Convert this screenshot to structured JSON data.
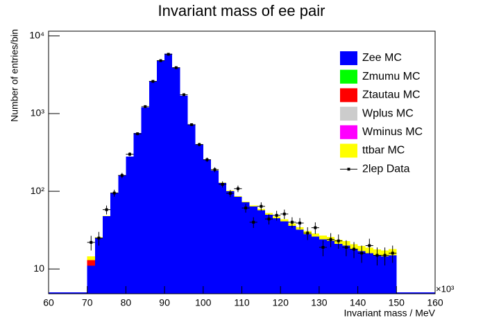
{
  "chart_data": {
    "type": "stacked-histogram",
    "title": "Invariant mass of ee pair",
    "x_label": "Invariant mass / MeV",
    "x_exponent": "×10³",
    "y_label": "Number of entries/bin",
    "log_y": true,
    "legend": "top-right",
    "xlim": [
      60,
      160
    ],
    "xticks": [
      60,
      70,
      80,
      90,
      100,
      110,
      120,
      130,
      140,
      150,
      160
    ],
    "ylim": [
      4.8,
      11500
    ],
    "yticks": [
      {
        "value": 10,
        "label": "10"
      },
      {
        "value": 100,
        "label": "10²"
      },
      {
        "value": 1000,
        "label": "10³"
      },
      {
        "value": 10000,
        "label": "10⁴"
      }
    ],
    "bins": [
      70,
      72,
      74,
      76,
      78,
      80,
      82,
      84,
      86,
      88,
      90,
      92,
      94,
      96,
      98,
      100,
      102,
      104,
      106,
      108,
      110,
      112,
      114,
      116,
      118,
      120,
      122,
      124,
      126,
      128,
      130,
      132,
      134,
      136,
      138,
      140,
      142,
      144,
      146,
      148,
      150
    ],
    "series": [
      {
        "name": "Zee MC",
        "color": "#0000ff",
        "values": [
          11,
          25,
          48,
          95,
          160,
          280,
          560,
          1200,
          2600,
          4800,
          5900,
          3900,
          1700,
          720,
          400,
          255,
          185,
          128,
          100,
          85,
          72,
          64,
          57,
          50,
          45,
          41,
          36,
          32,
          28,
          26,
          24,
          23,
          21,
          20,
          18,
          17,
          16,
          15,
          14.5,
          15
        ]
      },
      {
        "name": "Zmumu MC",
        "color": "#00ff00",
        "values": [
          0,
          0,
          0,
          0,
          0,
          0,
          0,
          0,
          0,
          0,
          0,
          0,
          0,
          0,
          0,
          0,
          0,
          0,
          0,
          0,
          0,
          0,
          0,
          0,
          0,
          0,
          0,
          0,
          0,
          0,
          0,
          0,
          0,
          0,
          0,
          0,
          0,
          0,
          0,
          0
        ]
      },
      {
        "name": "Ztautau MC",
        "color": "#ff0000",
        "values": [
          2,
          0,
          0,
          0,
          0,
          0,
          0,
          0,
          0,
          0,
          0,
          0,
          0,
          0,
          0,
          0,
          0,
          0,
          0,
          0,
          0,
          0,
          0,
          0,
          0,
          0,
          0,
          0,
          0,
          0,
          0,
          0,
          0,
          0,
          0,
          0,
          0,
          0,
          0,
          0
        ]
      },
      {
        "name": "Wplus MC",
        "color": "#cccccc",
        "values": [
          0,
          0,
          0,
          0,
          0,
          0,
          0,
          0,
          0,
          0,
          0,
          0,
          0,
          0,
          0,
          0,
          0,
          0,
          0,
          0,
          0,
          0,
          0,
          0,
          0,
          0,
          0,
          0,
          0,
          0,
          0,
          0,
          0,
          0,
          0,
          0,
          0,
          0,
          0,
          0
        ]
      },
      {
        "name": "Wminus MC",
        "color": "#ff00ff",
        "values": [
          0,
          0,
          0,
          0,
          0,
          0,
          0,
          0,
          0,
          0,
          0,
          0,
          0,
          0,
          0,
          0,
          0,
          0,
          0,
          0,
          0,
          0,
          0,
          0,
          0,
          0,
          0,
          0,
          0,
          0,
          0,
          0,
          0,
          0,
          0,
          0,
          0,
          0,
          0,
          0
        ]
      },
      {
        "name": "ttbar MC",
        "color": "#ffff00",
        "values": [
          1.5,
          0.5,
          0.5,
          0.6,
          0.7,
          0.8,
          1,
          1,
          1.2,
          1.3,
          1.4,
          1.5,
          1.5,
          1.5,
          1.5,
          1.6,
          1.6,
          1.7,
          1.8,
          2,
          2,
          2,
          2.2,
          2.5,
          2.5,
          2.5,
          2.6,
          2.6,
          2.7,
          2.7,
          2.8,
          2.8,
          2.8,
          2.8,
          2.8,
          2.8,
          2.8,
          2.8,
          2.8,
          3
        ]
      },
      {
        "name": "2lep Data",
        "color": "#000000",
        "style": "points",
        "values": [
          22,
          25,
          58,
          95,
          160,
          300,
          550,
          1230,
          2600,
          4800,
          5800,
          3900,
          1750,
          720,
          400,
          255,
          190,
          123,
          94,
          108,
          61,
          40,
          64,
          44,
          49,
          51,
          40,
          39,
          29,
          34,
          19,
          24,
          23,
          19,
          18,
          16,
          20,
          15,
          15,
          16
        ],
        "errors": [
          4.7,
          5,
          7.6,
          9.7,
          12.6,
          17.3,
          23.5,
          35,
          51,
          69,
          76,
          62,
          42,
          27,
          20,
          16,
          13.8,
          11.1,
          9.7,
          10.4,
          7.8,
          6.3,
          8,
          6.6,
          7,
          7.1,
          6.3,
          6.2,
          5.4,
          5.8,
          4.4,
          4.9,
          4.8,
          4.4,
          4.2,
          4,
          4.5,
          3.9,
          3.9,
          4
        ]
      }
    ]
  }
}
